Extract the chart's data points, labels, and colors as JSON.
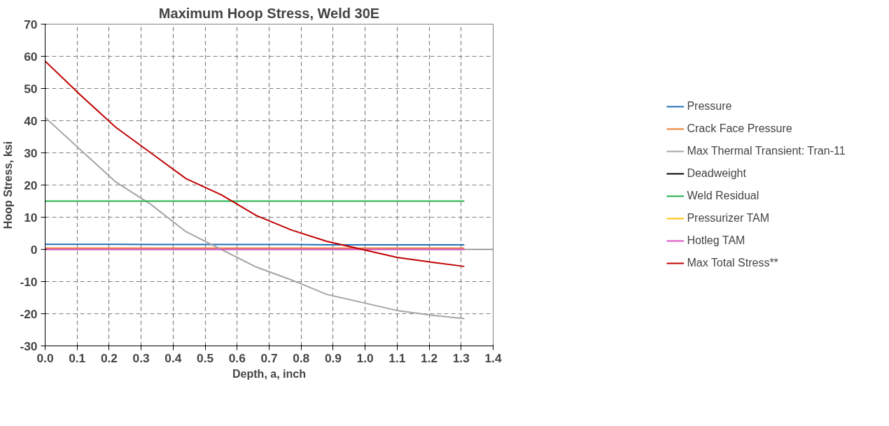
{
  "chart_data": {
    "type": "line",
    "title": "Maximum Hoop Stress, Weld 30E",
    "xlabel": "Depth, a, inch",
    "ylabel": "Hoop Stress, ksi",
    "x": [
      0,
      0.11,
      0.22,
      0.33,
      0.44,
      0.55,
      0.66,
      0.77,
      0.88,
      0.99,
      1.1,
      1.21,
      1.31
    ],
    "series": [
      {
        "name": "Pressure",
        "color": "#1f6fb8",
        "values": [
          1.6,
          1.6,
          1.6,
          1.5,
          1.5,
          1.5,
          1.5,
          1.5,
          1.4,
          1.4,
          1.4,
          1.4,
          1.4
        ]
      },
      {
        "name": "Crack Face Pressure",
        "color": "#ed7d31",
        "values": [
          0.4,
          0.4,
          0.4,
          0.4,
          0.4,
          0.4,
          0.4,
          0.4,
          0.4,
          0.4,
          0.4,
          0.4,
          0.4
        ]
      },
      {
        "name": "Max Thermal Transient: Tran-11",
        "color": "#a5a5a5",
        "values": [
          41,
          31,
          21,
          14,
          5.5,
          0,
          -5.5,
          -9.5,
          -14,
          -16.5,
          -19,
          -20.5,
          -21.5
        ]
      },
      {
        "name": "Deadweight",
        "color": "#000000",
        "values": [
          null,
          null,
          null,
          null,
          null,
          null,
          null,
          null,
          null,
          null,
          null,
          null,
          null
        ]
      },
      {
        "name": "Weld Residual",
        "color": "#22b14c",
        "values": [
          15,
          15,
          15,
          15,
          15,
          15,
          15,
          15,
          15,
          15,
          15,
          15,
          15
        ]
      },
      {
        "name": "Pressurizer TAM",
        "color": "#ffc000",
        "values": [
          null,
          null,
          null,
          null,
          null,
          null,
          null,
          null,
          null,
          null,
          null,
          null,
          null
        ]
      },
      {
        "name": "Hotleg TAM",
        "color": "#d94fc0",
        "values": [
          0,
          0,
          0,
          0,
          0,
          0,
          0,
          0,
          0,
          0,
          0,
          0,
          0
        ]
      },
      {
        "name": "Max Total Stress**",
        "color": "#c00000",
        "values": [
          58.5,
          48,
          38,
          30,
          22,
          17,
          10.5,
          6,
          2.5,
          0,
          -2.5,
          -4,
          -5.3
        ]
      }
    ],
    "xlim": [
      0,
      1.4
    ],
    "xticks": [
      {
        "value": 0,
        "label": "0.0"
      },
      0.1,
      0.2,
      0.3,
      0.4,
      0.5,
      0.6,
      0.7,
      0.8,
      0.9,
      {
        "value": 1,
        "label": "1.0"
      },
      1.1,
      1.2,
      1.3,
      1.4
    ],
    "ylim": [
      -30,
      70
    ],
    "yticks": [
      -30,
      -20,
      -10,
      0,
      10,
      20,
      30,
      40,
      50,
      60,
      70
    ],
    "ref_lines": [
      {
        "axis": "y",
        "value": 0,
        "color": "#808080"
      }
    ],
    "grid": true,
    "legend": "right",
    "marker": "none",
    "line_style": "solid"
  }
}
